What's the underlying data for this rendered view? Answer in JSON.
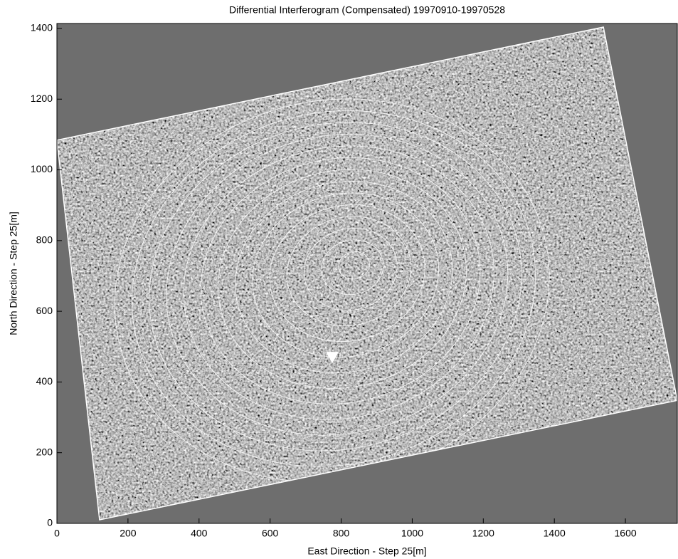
{
  "chart_data": {
    "type": "image",
    "title": "Differential Interferogram (Compensated) 19970910-19970528",
    "x_label": "East Direction - Step 25[m]",
    "y_label": "North Direction - Step 25[m]",
    "xlim": [
      0,
      1746
    ],
    "ylim": [
      0,
      1414
    ],
    "xticks": [
      0,
      200,
      400,
      600,
      800,
      1000,
      1200,
      1400,
      1600
    ],
    "yticks": [
      0,
      200,
      400,
      600,
      800,
      1000,
      1200,
      1400
    ],
    "background": "#6e6e6e",
    "footprint": {
      "x": [
        0,
        1538,
        1746,
        120
      ],
      "y": [
        1084,
        1404,
        348,
        10
      ],
      "color": "#ffffff"
    },
    "series": [
      {
        "x": [
          775
        ],
        "y": [
          467
        ],
        "color": "#ffffff"
      }
    ]
  }
}
